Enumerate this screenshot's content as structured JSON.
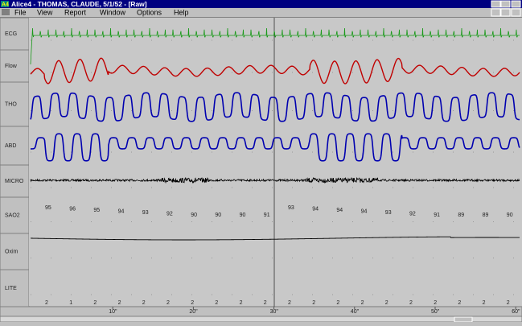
{
  "window": {
    "icon": "A4",
    "title": "Alice4 - THOMAS, CLAUDE, 5/1/52  - [Raw]",
    "menu": [
      "File",
      "View",
      "Report",
      "Window",
      "Options",
      "Help"
    ]
  },
  "channels": [
    "ECG",
    "Flow",
    "THO",
    "ABD",
    "MICRO",
    "SAO2",
    "Oxim",
    "LITE"
  ],
  "sao2_values": [
    95,
    96,
    95,
    94,
    93,
    92,
    90,
    90,
    90,
    91,
    93,
    94,
    94,
    94,
    93,
    92,
    91,
    89,
    89,
    90
  ],
  "lite_values": [
    2,
    1,
    2,
    2,
    2,
    2,
    2,
    2,
    2,
    2,
    2,
    2,
    2,
    2,
    2,
    2,
    2,
    2,
    2,
    2
  ],
  "time_labels": [
    "10\"",
    "20\"",
    "30\"",
    "40\"",
    "50\"",
    "60\""
  ]
}
